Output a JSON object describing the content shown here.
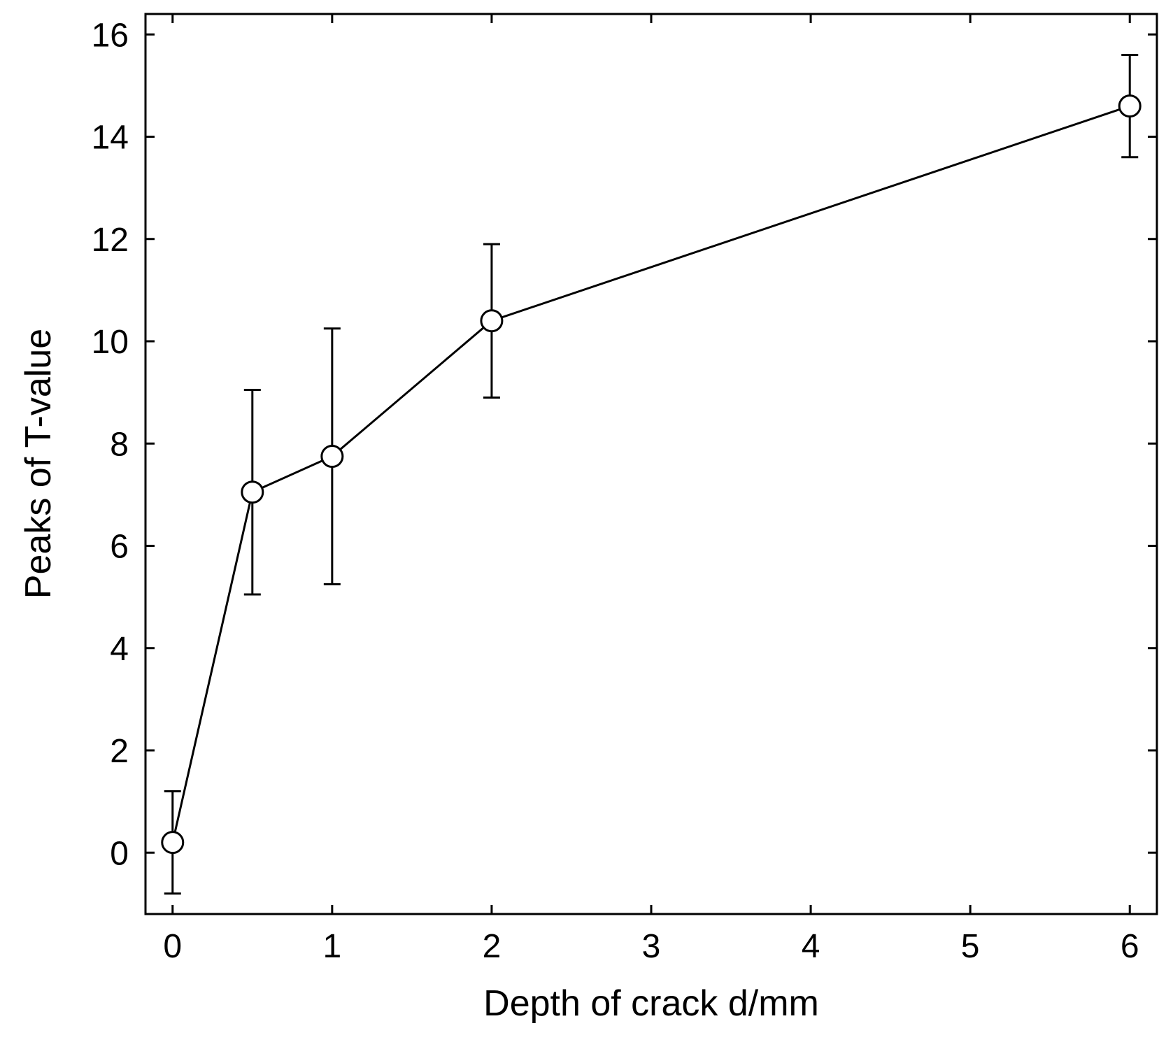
{
  "chart_data": {
    "type": "line",
    "xlabel": "Depth of crack d/mm",
    "ylabel": "Peaks of T-value",
    "xlim": [
      -0.17,
      6.17
    ],
    "ylim": [
      -1.2,
      16.4
    ],
    "xticks": [
      0,
      1,
      2,
      3,
      4,
      5,
      6
    ],
    "yticks": [
      0,
      2,
      4,
      6,
      8,
      10,
      12,
      14,
      16
    ],
    "grid": false,
    "marker": "open-circle",
    "line_color": "#000000",
    "series": [
      {
        "x": [
          0,
          0.5,
          1,
          2,
          6
        ],
        "y": [
          0.2,
          7.05,
          7.75,
          10.4,
          14.6
        ],
        "y_err_low": [
          -0.8,
          5.05,
          5.25,
          8.9,
          13.6
        ],
        "y_err_high": [
          1.2,
          9.05,
          10.25,
          11.9,
          15.6
        ]
      }
    ]
  }
}
